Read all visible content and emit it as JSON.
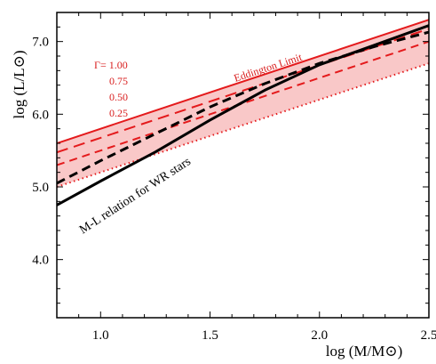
{
  "chart_data": {
    "type": "line",
    "xlabel": "log (M/M⊙)",
    "ylabel": "log (L/L⊙)",
    "xlim": [
      0.8,
      2.5
    ],
    "ylim": [
      3.2,
      7.4
    ],
    "x_ticks": [
      {
        "value": 1.0,
        "label": "1.0"
      },
      {
        "value": 1.5,
        "label": "1.5"
      },
      {
        "value": 2.0,
        "label": "2.0"
      },
      {
        "value": 2.5,
        "label": "2.5"
      }
    ],
    "y_ticks": [
      {
        "value": 4.0,
        "label": "4.0"
      },
      {
        "value": 5.0,
        "label": "5.0"
      },
      {
        "value": 6.0,
        "label": "6.0"
      },
      {
        "value": 7.0,
        "label": "7.0"
      }
    ],
    "x_minor_step": 0.1,
    "y_minor_step": 0.2,
    "grid": false,
    "colors": {
      "eddington": "#e41a1c",
      "band_fill": "#f9c8c8",
      "wr": "#000000"
    },
    "eddington_lines": [
      {
        "gamma_label": "Γ= 1.00",
        "style": "solid",
        "points": [
          [
            0.8,
            5.6
          ],
          [
            2.5,
            7.3
          ]
        ]
      },
      {
        "gamma_label": "0.75",
        "style": "longdash",
        "points": [
          [
            0.8,
            5.475
          ],
          [
            2.5,
            7.175
          ]
        ]
      },
      {
        "gamma_label": "0.50",
        "style": "shortdash",
        "points": [
          [
            0.8,
            5.3
          ],
          [
            2.5,
            7.0
          ]
        ]
      },
      {
        "gamma_label": "0.25",
        "style": "dotted",
        "points": [
          [
            0.8,
            5.0
          ],
          [
            2.5,
            6.7
          ]
        ]
      }
    ],
    "shaded_band": {
      "between": [
        "Γ= 1.00",
        "0.25"
      ]
    },
    "wr_series": [
      {
        "style": "solid",
        "points": [
          [
            0.8,
            4.75
          ],
          [
            1.0,
            5.08
          ],
          [
            1.25,
            5.48
          ],
          [
            1.5,
            5.92
          ],
          [
            1.75,
            6.33
          ],
          [
            2.0,
            6.68
          ],
          [
            2.25,
            6.95
          ],
          [
            2.5,
            7.22
          ]
        ]
      },
      {
        "style": "dashed",
        "points": [
          [
            0.8,
            5.05
          ],
          [
            1.0,
            5.36
          ],
          [
            1.25,
            5.73
          ],
          [
            1.5,
            6.1
          ],
          [
            1.75,
            6.42
          ],
          [
            2.0,
            6.7
          ],
          [
            2.25,
            6.93
          ],
          [
            2.5,
            7.13
          ]
        ]
      }
    ],
    "annotations": {
      "eddington_limit": "Eddington Limit",
      "wr_relation": "M-L relation for WR stars"
    }
  }
}
